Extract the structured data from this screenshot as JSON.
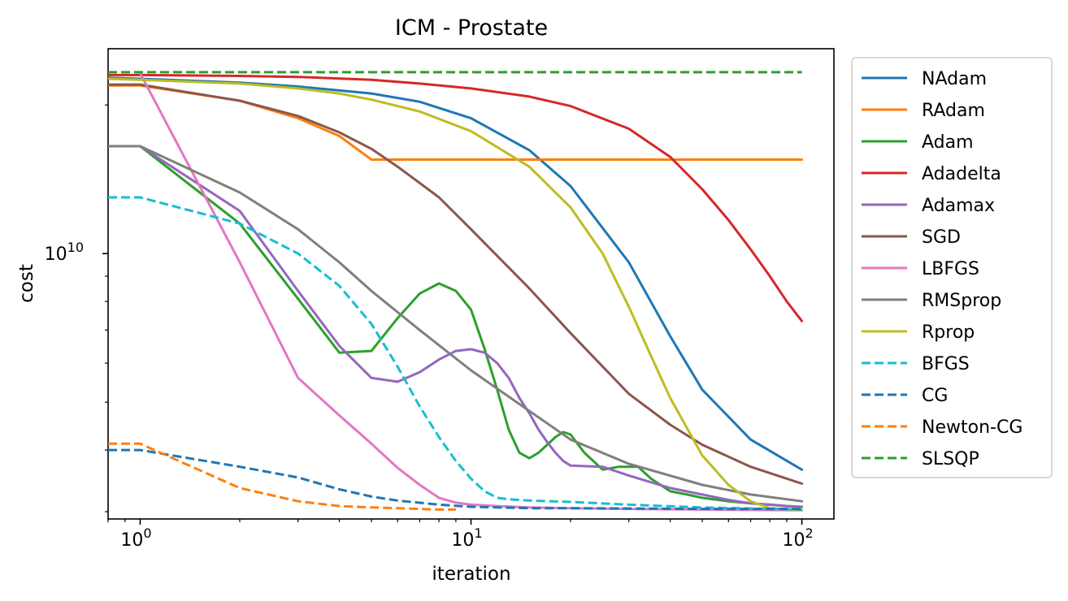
{
  "chart_data": {
    "type": "line",
    "title": "ICM - Prostate",
    "xlabel": "iteration",
    "ylabel": "cost",
    "xscale": "log",
    "yscale": "log",
    "xlim": [
      0.8,
      125
    ],
    "ylim": [
      2900000000.0,
      26000000000.0
    ],
    "grid": false,
    "legend_position": "outside-right",
    "x_ticks": [
      {
        "value": 1,
        "base": "10",
        "exp": "0"
      },
      {
        "value": 10,
        "base": "10",
        "exp": "1"
      },
      {
        "value": 100,
        "base": "10",
        "exp": "2"
      }
    ],
    "y_ticks": [
      {
        "value": 10000000000.0,
        "base": "10",
        "exp": "10"
      }
    ],
    "series": [
      {
        "name": "NAdam",
        "color": "#1f77b4",
        "dash": "solid",
        "x": [
          0.8,
          1,
          2,
          3,
          5,
          7,
          10,
          15,
          20,
          30,
          40,
          50,
          70,
          100
        ],
        "y": [
          22700000000.0,
          22600000000.0,
          22200000000.0,
          21800000000.0,
          21100000000.0,
          20300000000.0,
          18800000000.0,
          16200000000.0,
          13700000000.0,
          9600000000.0,
          6800000000.0,
          5300000000.0,
          4200000000.0,
          3650000000.0
        ]
      },
      {
        "name": "RAdam",
        "color": "#ff7f0e",
        "dash": "solid",
        "x": [
          0.8,
          1,
          2,
          3,
          4,
          5,
          10,
          100
        ],
        "y": [
          21900000000.0,
          21900000000.0,
          20400000000.0,
          18800000000.0,
          17300000000.0,
          15500000000.0,
          15500000000.0,
          15500000000.0
        ]
      },
      {
        "name": "Adam",
        "color": "#2ca02c",
        "dash": "solid",
        "x": [
          1,
          2,
          3,
          4,
          5,
          6,
          7,
          8,
          9,
          10,
          11,
          12,
          13,
          14,
          15,
          16,
          17,
          18,
          19,
          20,
          22,
          25,
          28,
          32,
          35,
          40,
          45,
          50,
          60,
          70,
          80,
          90,
          100
        ],
        "y": [
          16500000000.0,
          11500000000.0,
          8100000000.0,
          6300000000.0,
          6350000000.0,
          7400000000.0,
          8300000000.0,
          8700000000.0,
          8400000000.0,
          7700000000.0,
          6400000000.0,
          5300000000.0,
          4400000000.0,
          3950000000.0,
          3850000000.0,
          3950000000.0,
          4100000000.0,
          4250000000.0,
          4350000000.0,
          4300000000.0,
          3950000000.0,
          3650000000.0,
          3700000000.0,
          3700000000.0,
          3500000000.0,
          3300000000.0,
          3250000000.0,
          3200000000.0,
          3150000000.0,
          3120000000.0,
          3100000000.0,
          3080000000.0,
          3070000000.0
        ]
      },
      {
        "name": "Adadelta",
        "color": "#d62728",
        "dash": "solid",
        "x": [
          0.8,
          1,
          2,
          3,
          5,
          7,
          10,
          15,
          20,
          30,
          40,
          50,
          60,
          70,
          80,
          90,
          100
        ],
        "y": [
          23000000000.0,
          23000000000.0,
          22900000000.0,
          22800000000.0,
          22500000000.0,
          22100000000.0,
          21600000000.0,
          20800000000.0,
          19900000000.0,
          17900000000.0,
          15700000000.0,
          13500000000.0,
          11700000000.0,
          10200000000.0,
          9000000000.0,
          8000000000.0,
          7300000000.0
        ]
      },
      {
        "name": "Adamax",
        "color": "#9467bd",
        "dash": "solid",
        "x": [
          1,
          2,
          3,
          4,
          5,
          6,
          7,
          8,
          9,
          10,
          11,
          12,
          13,
          14,
          15,
          16,
          17,
          18,
          19,
          20,
          25,
          30,
          40,
          50,
          60,
          70,
          80,
          90,
          100
        ],
        "y": [
          16500000000.0,
          12200000000.0,
          8400000000.0,
          6500000000.0,
          5600000000.0,
          5500000000.0,
          5750000000.0,
          6100000000.0,
          6350000000.0,
          6400000000.0,
          6300000000.0,
          6000000000.0,
          5600000000.0,
          5100000000.0,
          4750000000.0,
          4400000000.0,
          4150000000.0,
          3950000000.0,
          3800000000.0,
          3720000000.0,
          3700000000.0,
          3550000000.0,
          3350000000.0,
          3250000000.0,
          3170000000.0,
          3120000000.0,
          3100000000.0,
          3080000000.0,
          3070000000.0
        ]
      },
      {
        "name": "SGD",
        "color": "#8c564b",
        "dash": "solid",
        "x": [
          0.8,
          1,
          2,
          3,
          4,
          5,
          6,
          8,
          10,
          15,
          20,
          30,
          40,
          50,
          70,
          100
        ],
        "y": [
          22000000000.0,
          22000000000.0,
          20400000000.0,
          19000000000.0,
          17600000000.0,
          16300000000.0,
          15000000000.0,
          13000000000.0,
          11200000000.0,
          8500000000.0,
          6900000000.0,
          5200000000.0,
          4500000000.0,
          4100000000.0,
          3700000000.0,
          3420000000.0
        ]
      },
      {
        "name": "LBFGS",
        "color": "#e377c2",
        "dash": "solid",
        "x": [
          1,
          2,
          3,
          4,
          5,
          6,
          7,
          8,
          9,
          10,
          12,
          15,
          20,
          30,
          50,
          100
        ],
        "y": [
          23200000000.0,
          9600000000.0,
          5600000000.0,
          4700000000.0,
          4120000000.0,
          3680000000.0,
          3400000000.0,
          3200000000.0,
          3130000000.0,
          3100000000.0,
          3080000000.0,
          3060000000.0,
          3050000000.0,
          3040000000.0,
          3030000000.0,
          3020000000.0
        ]
      },
      {
        "name": "RMSprop",
        "color": "#7f7f7f",
        "dash": "solid",
        "x": [
          0.8,
          1,
          2,
          3,
          4,
          5,
          7,
          10,
          15,
          20,
          30,
          50,
          70,
          100
        ],
        "y": [
          16500000000.0,
          16500000000.0,
          13300000000.0,
          11200000000.0,
          9600000000.0,
          8400000000.0,
          7000000000.0,
          5800000000.0,
          4800000000.0,
          4200000000.0,
          3750000000.0,
          3400000000.0,
          3250000000.0,
          3150000000.0
        ]
      },
      {
        "name": "Rprop",
        "color": "#bcbd22",
        "dash": "solid",
        "x": [
          0.8,
          1,
          2,
          3,
          4,
          5,
          7,
          10,
          15,
          20,
          25,
          30,
          35,
          40,
          50,
          60,
          70,
          80,
          100
        ],
        "y": [
          22600000000.0,
          22500000000.0,
          22100000000.0,
          21600000000.0,
          21100000000.0,
          20500000000.0,
          19400000000.0,
          17700000000.0,
          15000000000.0,
          12400000000.0,
          10000000000.0,
          7800000000.0,
          6200000000.0,
          5100000000.0,
          3900000000.0,
          3400000000.0,
          3150000000.0,
          3050000000.0,
          3020000000.0
        ]
      },
      {
        "name": "BFGS",
        "color": "#17becf",
        "dash": "dashed",
        "x": [
          0.8,
          1,
          2,
          3,
          4,
          5,
          6,
          7,
          8,
          9,
          10,
          11,
          12,
          13,
          15,
          20,
          30,
          50,
          100
        ],
        "y": [
          13000000000.0,
          13000000000.0,
          11500000000.0,
          10000000000.0,
          8600000000.0,
          7200000000.0,
          5900000000.0,
          4900000000.0,
          4250000000.0,
          3800000000.0,
          3500000000.0,
          3300000000.0,
          3200000000.0,
          3180000000.0,
          3160000000.0,
          3140000000.0,
          3100000000.0,
          3060000000.0,
          3030000000.0
        ]
      },
      {
        "name": "CG",
        "color": "#1f77b4",
        "dash": "dashed",
        "x": [
          0.8,
          1,
          2,
          3,
          4,
          5,
          6,
          8,
          10,
          15,
          20,
          50,
          100
        ],
        "y": [
          4000000000.0,
          4000000000.0,
          3700000000.0,
          3520000000.0,
          3330000000.0,
          3220000000.0,
          3160000000.0,
          3100000000.0,
          3070000000.0,
          3050000000.0,
          3050000000.0,
          3040000000.0,
          3040000000.0
        ]
      },
      {
        "name": "Newton-CG",
        "color": "#ff7f0e",
        "dash": "dashed",
        "x": [
          0.8,
          1,
          2,
          3,
          4,
          5,
          6,
          7,
          8,
          9
        ],
        "y": [
          4120000000.0,
          4120000000.0,
          3350000000.0,
          3150000000.0,
          3080000000.0,
          3060000000.0,
          3050000000.0,
          3040000000.0,
          3030000000.0,
          3030000000.0
        ]
      },
      {
        "name": "SLSQP",
        "color": "#2ca02c",
        "dash": "dashed",
        "x": [
          0.8,
          1,
          2,
          5,
          10,
          20,
          50,
          100
        ],
        "y": [
          23300000000.0,
          23300000000.0,
          23300000000.0,
          23300000000.0,
          23300000000.0,
          23300000000.0,
          23300000000.0,
          23300000000.0
        ]
      }
    ]
  }
}
